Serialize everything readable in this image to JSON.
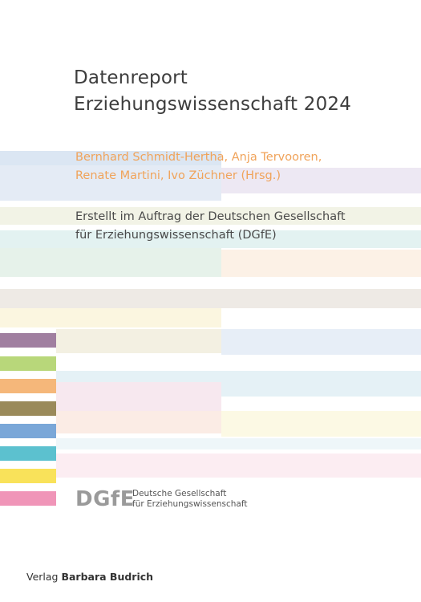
{
  "cover": {
    "title_line1": "Datenreport",
    "title_line2": "Erziehungswissenschaft 2024",
    "authors_line1": "Bernhard Schmidt-Hertha, Anja Tervooren,",
    "authors_line2": "Renate Martini, Ivo Züchner (Hrsg.)",
    "subtitle_line1": "Erstellt im Auftrag der Deutschen Gesellschaft",
    "subtitle_line2": "für Erziehungswissenschaft (DGfE)"
  },
  "logo": {
    "mark": "DGfE",
    "name_line1": "Deutsche Gesellschaft",
    "name_line2": "für Erziehungswissenschaft"
  },
  "publisher": {
    "prefix": "Verlag",
    "name": "Barbara Budrich"
  },
  "colors": {
    "title": "#3d3d3d",
    "authors": "#f0a35a",
    "swatch_purple": "#a07fa0",
    "swatch_green": "#b8d77a",
    "swatch_orange": "#f5b77a",
    "swatch_olive": "#9a8a5a",
    "swatch_blue": "#7aa7d8",
    "swatch_cyan": "#5cc1cf",
    "swatch_yellow": "#f9e25a",
    "swatch_pink": "#f095b8"
  }
}
